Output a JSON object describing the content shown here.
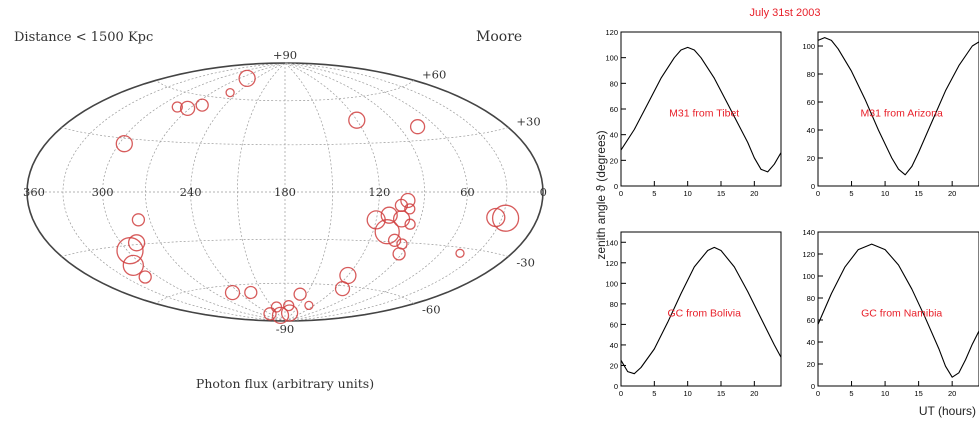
{
  "chart_data": [
    {
      "type": "scatter",
      "projection": "aitoff-hammer",
      "title_left": "Distance < 1500 Kpc",
      "title_right": "Moore",
      "xlabel": "Photon flux (arbitrary units)",
      "longitude_ticks": [
        "360",
        "300",
        "240",
        "180",
        "120",
        "60",
        "0"
      ],
      "latitude_ticks": [
        "+90",
        "+60",
        "+30",
        "-30",
        "-60",
        "-90"
      ],
      "marker_color": "#d04040",
      "points": [
        {
          "lon": 257,
          "lat": 75,
          "flux": 8
        },
        {
          "lon": 249,
          "lat": 64,
          "flux": 4
        },
        {
          "lon": 283,
          "lat": 51,
          "flux": 5
        },
        {
          "lon": 272,
          "lat": 51,
          "flux": 7
        },
        {
          "lon": 262,
          "lat": 54,
          "flux": 6
        },
        {
          "lon": 296,
          "lat": 27,
          "flux": 8
        },
        {
          "lon": 120,
          "lat": 45,
          "flux": 8
        },
        {
          "lon": 75,
          "lat": 38,
          "flux": 7
        },
        {
          "lon": 298,
          "lat": -33,
          "flux": 13
        },
        {
          "lon": 288,
          "lat": -29,
          "flux": 8
        },
        {
          "lon": 308,
          "lat": -41,
          "flux": 10
        },
        {
          "lon": 312,
          "lat": -48,
          "flux": 6
        },
        {
          "lon": 278,
          "lat": -16,
          "flux": 6
        },
        {
          "lon": 120,
          "lat": -17,
          "flux": 9
        },
        {
          "lon": 112,
          "lat": -14,
          "flux": 8
        },
        {
          "lon": 103,
          "lat": -16,
          "flux": 8
        },
        {
          "lon": 110,
          "lat": -24,
          "flux": 12
        },
        {
          "lon": 102,
          "lat": -29,
          "flux": 6
        },
        {
          "lon": 105,
          "lat": -8,
          "flux": 6
        },
        {
          "lon": 99,
          "lat": -10,
          "flux": 5
        },
        {
          "lon": 101,
          "lat": -5,
          "flux": 7
        },
        {
          "lon": 96,
          "lat": -19,
          "flux": 5
        },
        {
          "lon": 95,
          "lat": -31,
          "flux": 5
        },
        {
          "lon": 92,
          "lat": -37,
          "flux": 6
        },
        {
          "lon": 120,
          "lat": -53,
          "flux": 8
        },
        {
          "lon": 112,
          "lat": -62,
          "flux": 7
        },
        {
          "lon": 35,
          "lat": -13,
          "flux": 9
        },
        {
          "lon": 27,
          "lat": -13,
          "flux": 13
        },
        {
          "lon": 44,
          "lat": -33,
          "flux": 4
        },
        {
          "lon": 248,
          "lat": -65,
          "flux": 7
        },
        {
          "lon": 225,
          "lat": -66,
          "flux": 6
        },
        {
          "lon": 240,
          "lat": -83,
          "flux": 6
        },
        {
          "lon": 204,
          "lat": -85,
          "flux": 8
        },
        {
          "lon": 162,
          "lat": -83,
          "flux": 8
        },
        {
          "lon": 200,
          "lat": -78,
          "flux": 5
        },
        {
          "lon": 159,
          "lat": -68,
          "flux": 6
        },
        {
          "lon": 172,
          "lat": -77,
          "flux": 5
        },
        {
          "lon": 130,
          "lat": -76,
          "flux": 4
        }
      ]
    },
    {
      "type": "line",
      "suptitle": "July 31st 2003",
      "ylabel": "zenith angle ϑ (degrees)",
      "xlabel": "UT (hours)",
      "panels": [
        {
          "label": "M31 from Tibet",
          "xlim": [
            0,
            24
          ],
          "ylim": [
            0,
            120
          ],
          "xticks": [
            0,
            5,
            10,
            15,
            20
          ],
          "yticks": [
            0,
            20,
            40,
            60,
            80,
            100,
            120
          ],
          "x": [
            0,
            2,
            4,
            6,
            8,
            9,
            10,
            11,
            12,
            14,
            16,
            18,
            19,
            20,
            21,
            22,
            23,
            24
          ],
          "y": [
            28,
            44,
            64,
            84,
            100,
            106,
            108,
            106,
            100,
            84,
            64,
            44,
            34,
            22,
            13,
            11,
            17,
            26
          ]
        },
        {
          "label": "M31 from Arizona",
          "xlim": [
            0,
            24
          ],
          "ylim": [
            0,
            110
          ],
          "xticks": [
            0,
            5,
            10,
            15,
            20
          ],
          "yticks": [
            0,
            20,
            40,
            60,
            80,
            100
          ],
          "x": [
            0,
            1,
            2,
            3,
            5,
            7,
            9,
            11,
            12,
            13,
            14,
            15,
            17,
            19,
            21,
            23,
            24
          ],
          "y": [
            104,
            106,
            104,
            98,
            82,
            62,
            40,
            20,
            12,
            8,
            14,
            24,
            46,
            68,
            86,
            100,
            103
          ]
        },
        {
          "label": "GC from Bolivia",
          "xlim": [
            0,
            24
          ],
          "ylim": [
            0,
            150
          ],
          "xticks": [
            0,
            5,
            10,
            15,
            20
          ],
          "yticks": [
            0,
            20,
            40,
            60,
            80,
            100,
            120,
            140
          ],
          "x": [
            0,
            1,
            2,
            3,
            5,
            7,
            9,
            11,
            13,
            14,
            15,
            17,
            19,
            21,
            23,
            24
          ],
          "y": [
            25,
            14,
            12,
            18,
            36,
            62,
            90,
            116,
            132,
            135,
            132,
            116,
            92,
            66,
            40,
            28
          ]
        },
        {
          "label": "GC from Namibia",
          "xlim": [
            0,
            24
          ],
          "ylim": [
            0,
            140
          ],
          "xticks": [
            0,
            5,
            10,
            15,
            20
          ],
          "yticks": [
            0,
            20,
            40,
            60,
            80,
            100,
            120,
            140
          ],
          "x": [
            0,
            2,
            4,
            6,
            8,
            10,
            12,
            14,
            16,
            18,
            19,
            20,
            21,
            22,
            23,
            24
          ],
          "y": [
            56,
            84,
            108,
            124,
            129,
            124,
            110,
            88,
            62,
            34,
            18,
            8,
            12,
            24,
            38,
            50
          ]
        }
      ]
    }
  ]
}
